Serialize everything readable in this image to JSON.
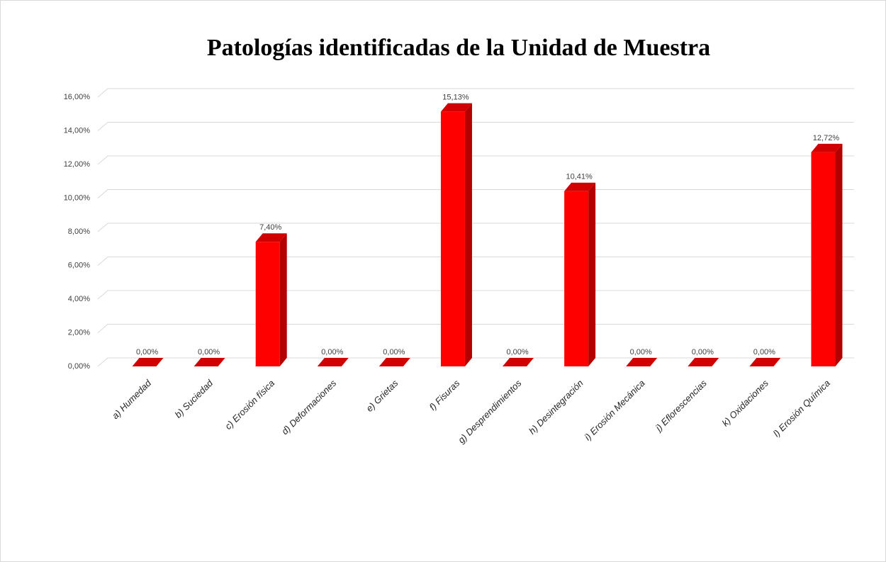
{
  "chart_data": {
    "type": "bar3d",
    "title": "Patologías identificadas de la Unidad  de Muestra",
    "categories": [
      "a) Humedad",
      "b) Suciedad",
      "c) Erosión física",
      "d) Deformaciones",
      "e) Grietas",
      "f) Fisuras",
      "g) Desprendimientos",
      "h) Desintegración",
      "i) Erosión Mecánica",
      "j) Eflorescencias",
      "k) Oxidaciones",
      "l) Erosión Química"
    ],
    "values": [
      0,
      0,
      7.4,
      0,
      0,
      15.13,
      0,
      10.41,
      0,
      0,
      0,
      12.72
    ],
    "value_labels": [
      "0,00%",
      "0,00%",
      "7,40%",
      "0,00%",
      "0,00%",
      "15,13%",
      "0,00%",
      "10,41%",
      "0,00%",
      "0,00%",
      "0,00%",
      "12,72%"
    ],
    "color": "#ff0000",
    "ylim": [
      0,
      16
    ],
    "yticks": [
      {
        "value": 0,
        "label": "0,00%"
      },
      {
        "value": 2,
        "label": "2,00%"
      },
      {
        "value": 4,
        "label": "4,00%"
      },
      {
        "value": 6,
        "label": "6,00%"
      },
      {
        "value": 8,
        "label": "8,00%"
      },
      {
        "value": 10,
        "label": "10,00%"
      },
      {
        "value": 12,
        "label": "12,00%"
      },
      {
        "value": 14,
        "label": "14,00%"
      },
      {
        "value": 16,
        "label": "16,00%"
      }
    ],
    "grid": true
  }
}
